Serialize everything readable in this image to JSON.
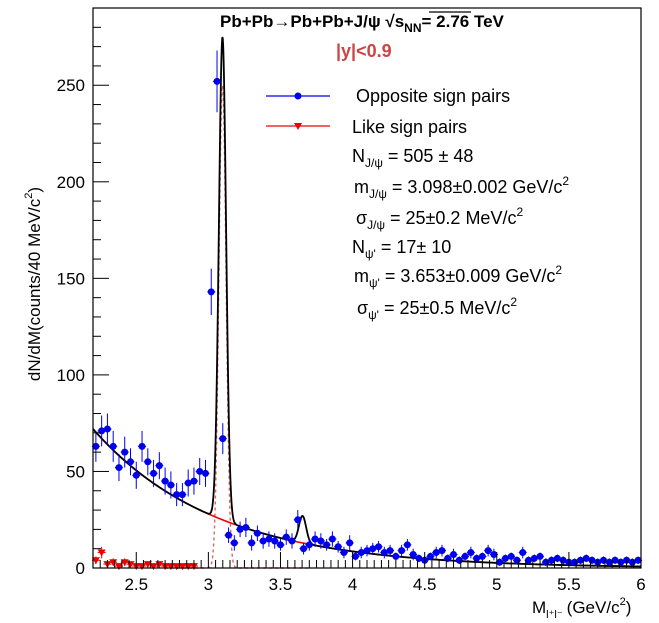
{
  "chart_data": {
    "type": "scatter",
    "title": "Pb+Pb→Pb+Pb+J/ψ √s",
    "title_sub": "NN",
    "title_energy": "= 2.76 TeV",
    "subtitle": "|y|<0.9",
    "subtitle_color": "#cc4444",
    "xlabel": "M",
    "xlabel_sub": "l⁺l⁻",
    "xlabel_unit": "(GeV/c",
    "xlabel_unit_sup": "2",
    "xlabel_unit_close": ")",
    "ylabel": "dN/dM(counts/40 MeV/c",
    "ylabel_sup": "2",
    "ylabel_close": ")",
    "xlim": [
      2.2,
      6.0
    ],
    "ylim": [
      0,
      290
    ],
    "x_ticks": [
      2.5,
      3,
      3.5,
      4,
      4.5,
      5,
      5.5,
      6
    ],
    "x_tick_labels": [
      "2.5",
      "3",
      "3.5",
      "4",
      "4.5",
      "5",
      "5.5",
      "6"
    ],
    "y_ticks": [
      0,
      50,
      100,
      150,
      200,
      250
    ],
    "y_tick_labels": [
      "0",
      "50",
      "100",
      "150",
      "200",
      "250"
    ],
    "grid": false,
    "legend_position": "top-right",
    "colors": {
      "opposite": "#0000ee",
      "like": "#ee0000",
      "fit_total": "#000000",
      "fit_background": "#ee0000",
      "fit_peak": "#dd6666"
    },
    "series": [
      {
        "name": "Opposite sign pairs",
        "marker": "circle",
        "x": [
          2.22,
          2.26,
          2.3,
          2.34,
          2.38,
          2.42,
          2.46,
          2.5,
          2.54,
          2.58,
          2.62,
          2.66,
          2.7,
          2.74,
          2.78,
          2.82,
          2.86,
          2.9,
          2.94,
          2.98,
          3.02,
          3.06,
          3.1,
          3.14,
          3.18,
          3.22,
          3.26,
          3.3,
          3.34,
          3.38,
          3.42,
          3.46,
          3.5,
          3.54,
          3.58,
          3.62,
          3.66,
          3.7,
          3.74,
          3.78,
          3.82,
          3.86,
          3.9,
          3.94,
          3.98,
          4.02,
          4.06,
          4.1,
          4.14,
          4.18,
          4.22,
          4.26,
          4.3,
          4.34,
          4.38,
          4.42,
          4.46,
          4.5,
          4.54,
          4.58,
          4.62,
          4.66,
          4.7,
          4.74,
          4.78,
          4.82,
          4.86,
          4.9,
          4.94,
          4.98,
          5.02,
          5.06,
          5.1,
          5.14,
          5.18,
          5.22,
          5.26,
          5.3,
          5.34,
          5.38,
          5.42,
          5.46,
          5.5,
          5.54,
          5.58,
          5.62,
          5.66,
          5.7,
          5.74,
          5.78,
          5.82,
          5.86,
          5.9,
          5.94,
          5.98
        ],
        "y": [
          63,
          71,
          72,
          63,
          52,
          60,
          55,
          48,
          63,
          55,
          49,
          53,
          45,
          43,
          38,
          38,
          44,
          45,
          50,
          49,
          143,
          252,
          67,
          17,
          13,
          20,
          21,
          13,
          18,
          14,
          15,
          14,
          12,
          16,
          14,
          25,
          10,
          12,
          15,
          14,
          12,
          15,
          11,
          8,
          13,
          6,
          8,
          9,
          10,
          11,
          8,
          9,
          6,
          9,
          12,
          7,
          5,
          4,
          6,
          8,
          9,
          5,
          7,
          4,
          6,
          8,
          5,
          6,
          9,
          7,
          3,
          5,
          6,
          4,
          8,
          4,
          5,
          6,
          3,
          4,
          5,
          4,
          3,
          3,
          4,
          5,
          4,
          3,
          4,
          3,
          4,
          3,
          4,
          3,
          4
        ],
        "errors": [
          8,
          8,
          8,
          8,
          7,
          8,
          7,
          7,
          8,
          7,
          7,
          7,
          7,
          7,
          6,
          6,
          7,
          7,
          7,
          7,
          12,
          16,
          8,
          4,
          4,
          4,
          5,
          4,
          4,
          4,
          4,
          4,
          3,
          4,
          4,
          5,
          3,
          3,
          4,
          4,
          3,
          4,
          3,
          3,
          4,
          2,
          3,
          3,
          3,
          3,
          3,
          3,
          2,
          3,
          3,
          3,
          2,
          2,
          2,
          3,
          3,
          2,
          3,
          2,
          2,
          3,
          2,
          2,
          3,
          3,
          2,
          2,
          2,
          2,
          3,
          2,
          2,
          2,
          2,
          2,
          2,
          2,
          2,
          2,
          2,
          2,
          2,
          2,
          2,
          2,
          2,
          2,
          2,
          2,
          2
        ]
      },
      {
        "name": "Like sign pairs",
        "marker": "triangle-down",
        "x": [
          2.22,
          2.26,
          2.3,
          2.34,
          2.38,
          2.42,
          2.46,
          2.5,
          2.54,
          2.58,
          2.62,
          2.66,
          2.7,
          2.74,
          2.78,
          2.82,
          2.86,
          2.9
        ],
        "y": [
          4,
          8,
          2,
          3,
          1,
          3,
          2,
          1,
          1,
          2,
          1,
          2,
          1,
          1,
          1,
          1,
          1,
          1
        ],
        "errors": [
          2,
          3,
          1,
          2,
          1,
          2,
          1,
          1,
          1,
          1,
          1,
          1,
          1,
          1,
          1,
          1,
          1,
          1
        ]
      }
    ],
    "fit": {
      "jpsi_mass": 3.098,
      "jpsi_sigma": 0.025,
      "jpsi_amplitude": 250,
      "psi2s_mass": 3.653,
      "psi2s_sigma": 0.025,
      "psi2s_amplitude": 14,
      "background_a": 72,
      "background_b": 1.18,
      "background_x0": 2.2
    },
    "annotations": [
      {
        "name": "N_J/psi",
        "label": "N",
        "sub": "J/ψ",
        "value": " = 505 ± 48"
      },
      {
        "name": "m_J/psi",
        "label": "m",
        "sub": "J/ψ",
        "value": " = 3.098±0.002 GeV/c",
        "sup": "2"
      },
      {
        "name": "sigma_J/psi",
        "label": "σ",
        "sub": "J/ψ",
        "value": " = 25±0.2 MeV/c",
        "sup": "2"
      },
      {
        "name": "N_psi'",
        "label": "N",
        "sub": "ψ'",
        "value": " = 17± 10"
      },
      {
        "name": "m_psi'",
        "label": "m",
        "sub": "ψ'",
        "value": " = 3.653±0.009 GeV/c",
        "sup": "2"
      },
      {
        "name": "sigma_psi'",
        "label": "σ",
        "sub": "ψ'",
        "value": " = 25±0.5 MeV/c",
        "sup": "2"
      }
    ]
  }
}
